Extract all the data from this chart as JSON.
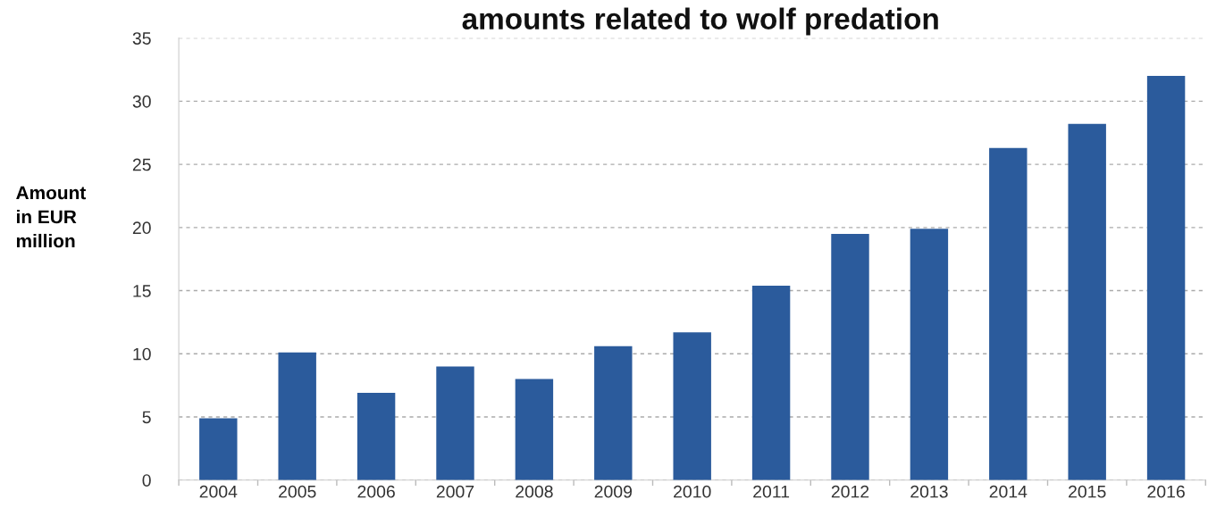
{
  "chart_data": {
    "type": "bar",
    "title": "amounts related to wolf predation",
    "ylabel": "Amount\nin EUR\nmillion",
    "categories": [
      "2004",
      "2005",
      "2006",
      "2007",
      "2008",
      "2009",
      "2010",
      "2011",
      "2012",
      "2013",
      "2014",
      "2015",
      "2016"
    ],
    "values": [
      4.9,
      10.1,
      6.9,
      9.0,
      8.0,
      10.6,
      11.7,
      15.4,
      19.5,
      19.9,
      26.3,
      28.2,
      32.0
    ],
    "color": "#2b5b9c",
    "ylim": [
      0,
      35
    ],
    "yticks": [
      0,
      5,
      10,
      15,
      20,
      25,
      30,
      35
    ],
    "grid": "y"
  }
}
